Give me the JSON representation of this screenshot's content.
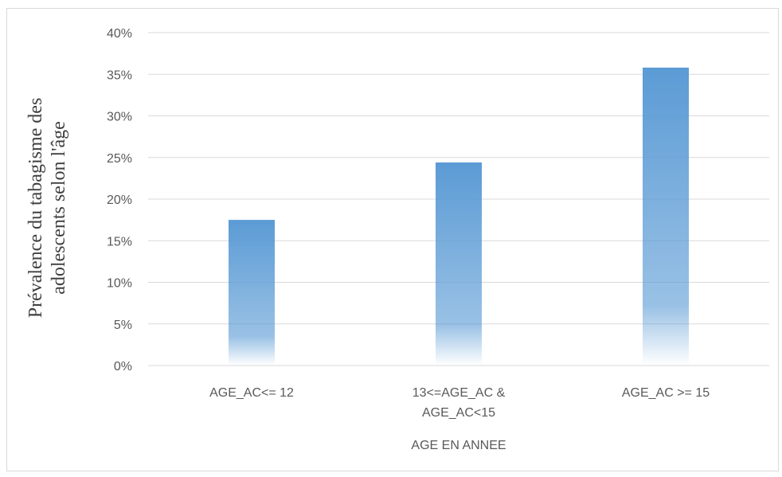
{
  "chart_data": {
    "type": "bar",
    "categories": [
      [
        "AGE_AC<= 12"
      ],
      [
        "13<=AGE_AC &",
        "AGE_AC<15"
      ],
      [
        "AGE_AC >= 15"
      ]
    ],
    "values": [
      0.175,
      0.244,
      0.358
    ],
    "xlabel": "AGE EN ANNEE",
    "ylabel": [
      "Prévalence du tabagisme des",
      "adolescents selon l'âge"
    ],
    "ylim": [
      0,
      0.4
    ],
    "yticks": [
      0,
      0.05,
      0.1,
      0.15,
      0.2,
      0.25,
      0.3,
      0.35,
      0.4
    ],
    "ytick_labels": [
      "0%",
      "5%",
      "10%",
      "15%",
      "20%",
      "25%",
      "30%",
      "35%",
      "40%"
    ],
    "grid": true,
    "colors": {
      "bar_top": "#5b9bd5",
      "bar_bottom": "#ffffff",
      "grid": "#d9d9d9",
      "text": "#595959"
    }
  }
}
